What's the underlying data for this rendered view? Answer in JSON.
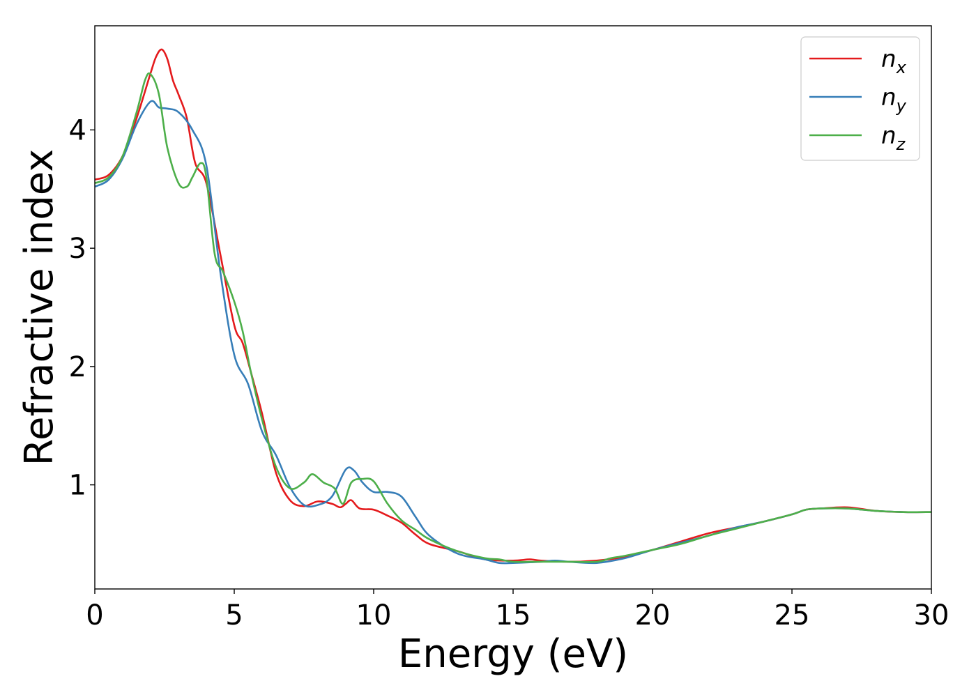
{
  "chart_data": {
    "type": "line",
    "xlabel": "Energy (eV)",
    "ylabel": "Refractive index",
    "xlim": [
      0,
      30
    ],
    "ylim": [
      0.12,
      4.88
    ],
    "xticks": [
      0,
      5,
      10,
      15,
      20,
      25,
      30
    ],
    "xtick_labels": [
      "0",
      "5",
      "10",
      "15",
      "20",
      "25",
      "30"
    ],
    "yticks": [
      1,
      2,
      3,
      4
    ],
    "ytick_labels": [
      "1",
      "2",
      "3",
      "4"
    ],
    "grid": false,
    "legend_position": "top-right",
    "series": [
      {
        "name": "n",
        "subscript": "x",
        "color": "#e41a1c",
        "x": [
          0,
          0.5,
          1,
          1.5,
          2,
          2.2,
          2.4,
          2.6,
          2.8,
          3,
          3.3,
          3.6,
          4,
          4.5,
          5,
          5.3,
          5.6,
          6,
          6.5,
          7,
          7.5,
          8,
          8.5,
          8.8,
          9,
          9.2,
          9.5,
          10,
          10.5,
          11,
          11.5,
          12,
          13,
          14,
          15,
          15.6,
          16,
          17,
          18,
          19,
          20,
          21,
          22,
          23,
          24,
          25,
          25.5,
          26,
          27,
          28,
          29,
          30
        ],
        "y": [
          3.58,
          3.62,
          3.78,
          4.1,
          4.48,
          4.62,
          4.68,
          4.6,
          4.42,
          4.3,
          4.1,
          3.72,
          3.55,
          2.95,
          2.35,
          2.2,
          1.95,
          1.6,
          1.1,
          0.87,
          0.82,
          0.86,
          0.84,
          0.81,
          0.84,
          0.87,
          0.8,
          0.79,
          0.74,
          0.68,
          0.58,
          0.5,
          0.44,
          0.37,
          0.36,
          0.37,
          0.36,
          0.35,
          0.36,
          0.39,
          0.45,
          0.52,
          0.59,
          0.64,
          0.69,
          0.75,
          0.79,
          0.8,
          0.81,
          0.78,
          0.77,
          0.77
        ]
      },
      {
        "name": "n",
        "subscript": "y",
        "color": "#377eb8",
        "x": [
          0,
          0.5,
          1,
          1.5,
          2,
          2.3,
          2.6,
          3,
          3.5,
          4,
          4.5,
          5,
          5.5,
          6,
          6.5,
          7,
          7.5,
          8,
          8.5,
          9,
          9.3,
          9.6,
          10,
          10.5,
          11,
          11.5,
          12,
          13,
          14,
          14.5,
          15,
          16,
          16.5,
          17,
          18,
          19,
          20,
          21,
          22,
          23,
          24,
          25,
          25.5,
          26,
          27,
          28,
          29,
          30
        ],
        "y": [
          3.52,
          3.58,
          3.76,
          4.05,
          4.24,
          4.19,
          4.18,
          4.15,
          4.0,
          3.7,
          2.8,
          2.1,
          1.85,
          1.45,
          1.25,
          0.98,
          0.83,
          0.83,
          0.9,
          1.13,
          1.12,
          1.02,
          0.94,
          0.94,
          0.9,
          0.73,
          0.57,
          0.42,
          0.37,
          0.34,
          0.34,
          0.35,
          0.36,
          0.35,
          0.34,
          0.38,
          0.45,
          0.51,
          0.57,
          0.64,
          0.69,
          0.75,
          0.79,
          0.8,
          0.8,
          0.78,
          0.77,
          0.77
        ]
      },
      {
        "name": "n",
        "subscript": "z",
        "color": "#4daf4a",
        "x": [
          0,
          0.5,
          1,
          1.5,
          1.8,
          2,
          2.3,
          2.6,
          3,
          3.3,
          3.5,
          3.8,
          4,
          4.3,
          4.6,
          5,
          5.3,
          5.6,
          6,
          6.5,
          7,
          7.5,
          7.8,
          8.2,
          8.6,
          8.9,
          9.2,
          9.6,
          10,
          10.5,
          11,
          11.5,
          12,
          13,
          14,
          14.5,
          15,
          16,
          17,
          18,
          18.5,
          19,
          20,
          21,
          22,
          23,
          24,
          25,
          25.5,
          26,
          27,
          28,
          29,
          30
        ],
        "y": [
          3.55,
          3.6,
          3.78,
          4.15,
          4.42,
          4.47,
          4.3,
          3.85,
          3.55,
          3.52,
          3.6,
          3.72,
          3.6,
          2.95,
          2.8,
          2.55,
          2.3,
          1.95,
          1.55,
          1.15,
          0.97,
          1.02,
          1.09,
          1.02,
          0.97,
          0.84,
          1.02,
          1.05,
          1.03,
          0.84,
          0.7,
          0.62,
          0.54,
          0.44,
          0.38,
          0.37,
          0.35,
          0.35,
          0.35,
          0.35,
          0.38,
          0.4,
          0.45,
          0.5,
          0.57,
          0.63,
          0.69,
          0.75,
          0.79,
          0.8,
          0.8,
          0.78,
          0.77,
          0.77
        ]
      }
    ]
  }
}
